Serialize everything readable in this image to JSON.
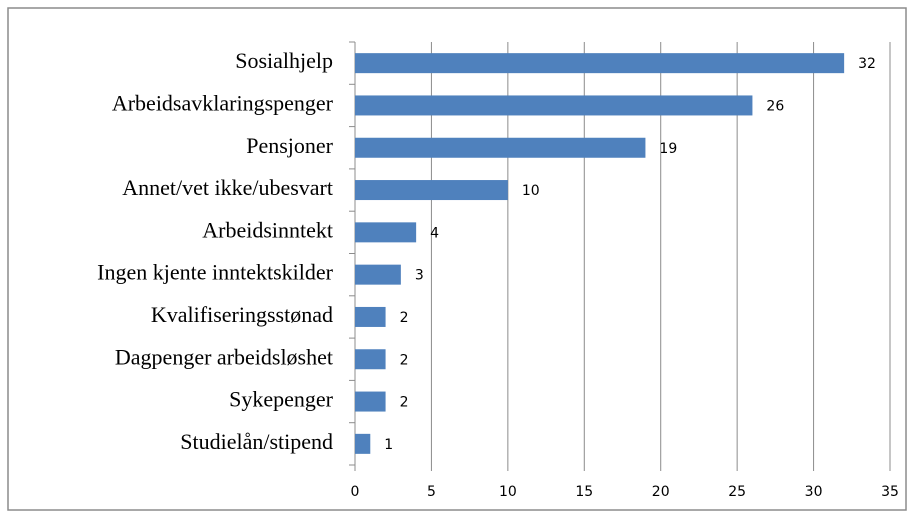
{
  "chart_data": {
    "type": "bar",
    "orientation": "horizontal",
    "categories": [
      "Sosialhjelp",
      "Arbeidsavklaringspenger",
      "Pensjoner",
      "Annet/vet ikke/ubesvart",
      "Arbeidsinntekt",
      "Ingen kjente inntektskilder",
      "Kvalifiseringsstønad",
      "Dagpenger arbeidsløshet",
      "Sykepenger",
      "Studielån/stipend"
    ],
    "values": [
      32,
      26,
      19,
      10,
      4,
      3,
      2,
      2,
      2,
      1
    ],
    "color": "#4f81bd",
    "xlim": [
      0,
      35
    ],
    "xticks": [
      0,
      5,
      10,
      15,
      20,
      25,
      30,
      35
    ],
    "grid": true
  }
}
